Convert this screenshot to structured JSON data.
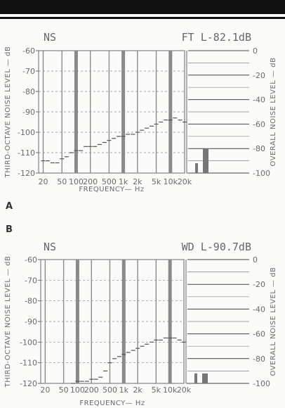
{
  "chart_data": [
    {
      "type": "bar",
      "panel_label": "A",
      "mode": "NS",
      "reading": "FT L-82.1dB",
      "xlabel": "FREQUENCY— Hz",
      "ylabel": "THIRD-OCTAVE NOISE LEVEL — dB",
      "ylabel_right": "OVERALL NOISE LEVEL — dB",
      "y_ticks": [
        "-60",
        "-70",
        "-80",
        "-90",
        "-100",
        "-110",
        "-120"
      ],
      "y_ticks_right": [
        "0",
        "-20",
        "-40",
        "-60",
        "-80",
        "-100"
      ],
      "x_ticks": [
        "20",
        "50",
        "100",
        "200",
        "500",
        "1k",
        "2k",
        "5k",
        "10k",
        "20k"
      ],
      "ylim": [
        -120,
        -60
      ],
      "ylim_right": [
        -100,
        0
      ],
      "x_log": true,
      "xlim": [
        16,
        20000
      ],
      "third_octave_levels": [
        [
          20,
          -114
        ],
        [
          25,
          -114
        ],
        [
          31.5,
          -115
        ],
        [
          40,
          -115
        ],
        [
          50,
          -113
        ],
        [
          63,
          -112
        ],
        [
          80,
          -110
        ],
        [
          100,
          -109
        ],
        [
          125,
          -109
        ],
        [
          160,
          -107
        ],
        [
          200,
          -107
        ],
        [
          250,
          -107
        ],
        [
          315,
          -106
        ],
        [
          400,
          -105
        ],
        [
          500,
          -104
        ],
        [
          630,
          -103
        ],
        [
          800,
          -102
        ],
        [
          1000,
          -102
        ],
        [
          1250,
          -101
        ],
        [
          1600,
          -101
        ],
        [
          2000,
          -100
        ],
        [
          2500,
          -99
        ],
        [
          3150,
          -98
        ],
        [
          4000,
          -97
        ],
        [
          5000,
          -96
        ],
        [
          6300,
          -95
        ],
        [
          8000,
          -94
        ],
        [
          10000,
          -94
        ],
        [
          12500,
          -93
        ],
        [
          16000,
          -94
        ],
        [
          20000,
          -95
        ]
      ],
      "overall_bars": [
        -92,
        -80
      ]
    },
    {
      "type": "bar",
      "panel_label": "B",
      "mode": "NS",
      "reading": "WD L-90.7dB",
      "xlabel": "FREQUENCY— Hz",
      "ylabel": "THIRD-OCTAVE NOISE LEVEL — dB",
      "ylabel_right": "OVERALL NOISE LEVEL — dB",
      "y_ticks": [
        "-60",
        "-70",
        "-80",
        "-90",
        "-100",
        "-110",
        "-120"
      ],
      "y_ticks_right": [
        "0",
        "-20",
        "-40",
        "-60",
        "-80",
        "-100"
      ],
      "x_ticks": [
        "20",
        "50",
        "100",
        "200",
        "500",
        "1k",
        "2k",
        "5k",
        "10k",
        "20k"
      ],
      "ylim": [
        -120,
        -60
      ],
      "ylim_right": [
        -100,
        0
      ],
      "x_log": true,
      "xlim": [
        16,
        20000
      ],
      "third_octave_levels": [
        [
          80,
          -120
        ],
        [
          100,
          -119
        ],
        [
          125,
          -119
        ],
        [
          160,
          -119
        ],
        [
          200,
          -118
        ],
        [
          250,
          -118
        ],
        [
          315,
          -117
        ],
        [
          400,
          -114
        ],
        [
          500,
          -110
        ],
        [
          630,
          -108
        ],
        [
          800,
          -107
        ],
        [
          1000,
          -106
        ],
        [
          1250,
          -105
        ],
        [
          1600,
          -104
        ],
        [
          2000,
          -103
        ],
        [
          2500,
          -102
        ],
        [
          3150,
          -101
        ],
        [
          4000,
          -100
        ],
        [
          5000,
          -99
        ],
        [
          6300,
          -99
        ],
        [
          8000,
          -98
        ],
        [
          10000,
          -98
        ],
        [
          12500,
          -98
        ],
        [
          16000,
          -99
        ],
        [
          20000,
          -100
        ]
      ],
      "overall_bars": [
        -92,
        -92
      ]
    }
  ]
}
